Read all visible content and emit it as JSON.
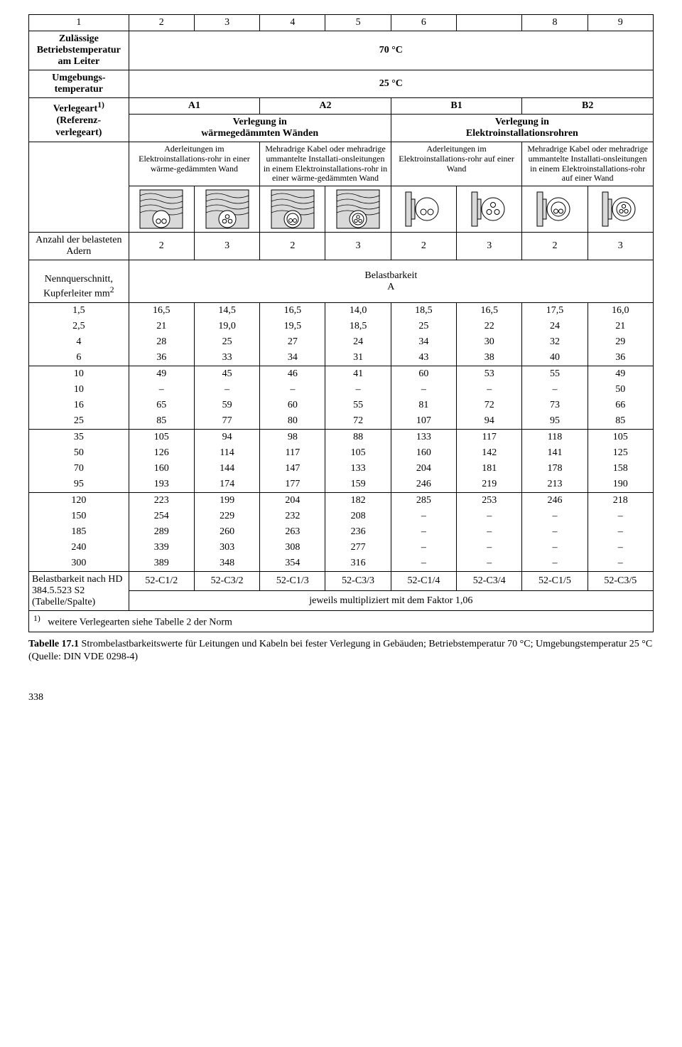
{
  "header_nums": [
    "1",
    "2",
    "3",
    "4",
    "5",
    "6",
    "",
    "8",
    "9"
  ],
  "row_labels": {
    "betriebs": "Zulässige Betriebstemperatur am Leiter",
    "umgebung": "Umgebungs-\ntemperatur",
    "verlegeart": "Verlegeart",
    "verlegeart_sup": "1)",
    "referenz": "(Referenz-\nverlegeart)",
    "verlegung_in": "Verlegung in\nwärmegedämmten Wänden",
    "verlegung_inst": "Verlegung in\nElektroinstallationsrohren",
    "anzahl": "Anzahl der belasteten Adern",
    "nenn": "Nennquerschnitt,\nKupferleiter mm",
    "nenn_sup": "2",
    "belast": "Belastbarkeit\nA",
    "belastnach": "Belastbarkeit nach HD 384.5.523 S2 (Tabelle/Spalte)",
    "jeweils": "jeweils multipliziert mit dem Faktor 1,06",
    "foot_sup": "1)",
    "footnote": "weitere Verlegearten siehe Tabelle 2 der Norm"
  },
  "values": {
    "temp70": "70 °C",
    "temp25": "25 °C",
    "A1": "A1",
    "A2": "A2",
    "B1": "B1",
    "B2": "B2"
  },
  "col_desc": {
    "c1": "Aderleitungen im Elektroinstallations-rohr in einer wärme-gedämmten Wand",
    "c2": "Mehradrige Kabel oder mehradrige ummantelte Installati-onsleitungen in einem Elektroinstallations-rohr in einer wärme-gedämmten Wand",
    "c3": "Aderleitungen im Elektroinstallations-rohr auf einer Wand",
    "c4": "Mehradrige Kabel oder mehradrige ummantelte Installati-onsleitungen in einem Elektroinstallations-rohr auf einer Wand"
  },
  "adern": [
    "2",
    "3",
    "2",
    "3",
    "2",
    "3",
    "2",
    "3"
  ],
  "sections": [
    {
      "rows": [
        {
          "label": "1,5",
          "v": [
            "16,5",
            "14,5",
            "16,5",
            "14,0",
            "18,5",
            "16,5",
            "17,5",
            "16,0"
          ]
        },
        {
          "label": "2,5",
          "v": [
            "21",
            "19,0",
            "19,5",
            "18,5",
            "25",
            "22",
            "24",
            "21"
          ]
        },
        {
          "label": "4",
          "v": [
            "28",
            "25",
            "27",
            "24",
            "34",
            "30",
            "32",
            "29"
          ]
        },
        {
          "label": "6",
          "v": [
            "36",
            "33",
            "34",
            "31",
            "43",
            "38",
            "40",
            "36"
          ]
        }
      ]
    },
    {
      "rows": [
        {
          "label": "10",
          "v": [
            "49",
            "45",
            "46",
            "41",
            "60",
            "53",
            "55",
            "49"
          ]
        },
        {
          "label": "10",
          "v": [
            "–",
            "–",
            "–",
            "–",
            "–",
            "–",
            "–",
            "50"
          ]
        },
        {
          "label": "16",
          "v": [
            "65",
            "59",
            "60",
            "55",
            "81",
            "72",
            "73",
            "66"
          ]
        },
        {
          "label": "25",
          "v": [
            "85",
            "77",
            "80",
            "72",
            "107",
            "94",
            "95",
            "85"
          ]
        }
      ]
    },
    {
      "rows": [
        {
          "label": "35",
          "v": [
            "105",
            "94",
            "98",
            "88",
            "133",
            "117",
            "118",
            "105"
          ]
        },
        {
          "label": "50",
          "v": [
            "126",
            "114",
            "117",
            "105",
            "160",
            "142",
            "141",
            "125"
          ]
        },
        {
          "label": "70",
          "v": [
            "160",
            "144",
            "147",
            "133",
            "204",
            "181",
            "178",
            "158"
          ]
        },
        {
          "label": "95",
          "v": [
            "193",
            "174",
            "177",
            "159",
            "246",
            "219",
            "213",
            "190"
          ]
        }
      ]
    },
    {
      "rows": [
        {
          "label": "120",
          "v": [
            "223",
            "199",
            "204",
            "182",
            "285",
            "253",
            "246",
            "218"
          ]
        },
        {
          "label": "150",
          "v": [
            "254",
            "229",
            "232",
            "208",
            "–",
            "–",
            "–",
            "–"
          ]
        },
        {
          "label": "185",
          "v": [
            "289",
            "260",
            "263",
            "236",
            "–",
            "–",
            "–",
            "–"
          ]
        },
        {
          "label": "240",
          "v": [
            "339",
            "303",
            "308",
            "277",
            "–",
            "–",
            "–",
            "–"
          ]
        },
        {
          "label": "300",
          "v": [
            "389",
            "348",
            "354",
            "316",
            "–",
            "–",
            "–",
            "–"
          ]
        }
      ]
    }
  ],
  "refcodes": [
    "52-C1/2",
    "52-C3/2",
    "52-C1/3",
    "52-C3/3",
    "52-C1/4",
    "52-C3/4",
    "52-C1/5",
    "52-C3/5"
  ],
  "caption": {
    "title": "Tabelle 17.1",
    "text": " Strombelastbarkeitswerte für Leitungen und Kabeln bei fester Verlegung in Gebäuden; Betriebstemperatur 70 °C; Umgebungstemperatur 25 °C",
    "source": "(Quelle: DIN VDE 0298-4)"
  },
  "page": "338",
  "colors": {
    "svg_fill": "#d9d9d9",
    "svg_stroke": "#000000"
  }
}
